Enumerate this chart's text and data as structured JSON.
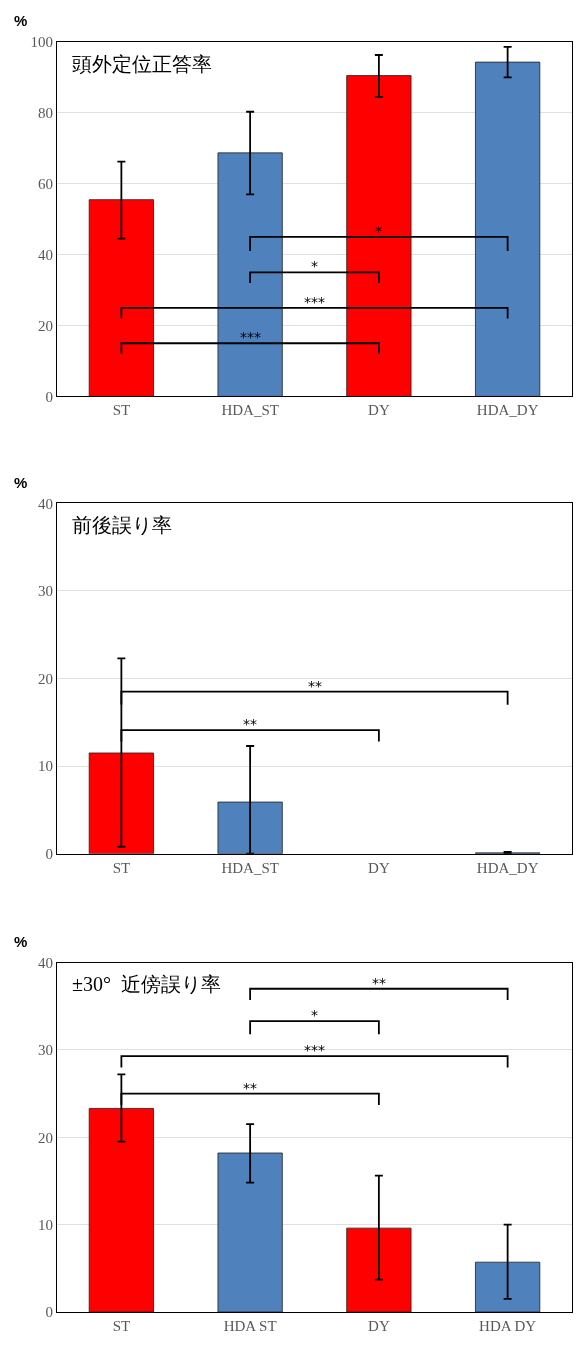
{
  "chart_data": [
    {
      "type": "bar",
      "title": "頭外定位正答率",
      "ylabel": "%",
      "categories": [
        "ST",
        "HDA_ST",
        "DY",
        "HDA_DY"
      ],
      "values": [
        55.5,
        68.7,
        90.5,
        94.3
      ],
      "colors": [
        "#ff0000",
        "#4f81bd",
        "#ff0000",
        "#4f81bd"
      ],
      "errors": [
        [
          44.5,
          66.2
        ],
        [
          57,
          80.3
        ],
        [
          84.5,
          96.3
        ],
        [
          90,
          98.6
        ]
      ],
      "ylim": [
        0,
        100
      ],
      "yticks": [
        0,
        20,
        40,
        60,
        80,
        100
      ],
      "grid": "y",
      "annotations": [
        "*",
        "*",
        "***",
        "***"
      ]
    },
    {
      "type": "bar",
      "title": "前後誤り率",
      "ylabel": "%",
      "categories": [
        "ST",
        "HDA_ST",
        "DY",
        "HDA_DY"
      ],
      "values": [
        11.5,
        5.9,
        null,
        0.1
      ],
      "colors": [
        "#ff0000",
        "#4f81bd",
        "#ff0000",
        "#4f81bd"
      ],
      "errors": [
        [
          0.8,
          22.3
        ],
        [
          0,
          12.3
        ],
        null,
        [
          0,
          0.2
        ]
      ],
      "ylim": [
        0,
        40
      ],
      "yticks": [
        0,
        10,
        20,
        30,
        40
      ],
      "grid": "y",
      "annotations": [
        "**",
        "**"
      ]
    },
    {
      "type": "bar",
      "title": "±30°  近傍誤り率",
      "ylabel": "%",
      "categories": [
        "ST",
        "HDA ST",
        "DY",
        "HDA DY"
      ],
      "values": [
        23.3,
        18.2,
        9.6,
        5.7
      ],
      "colors": [
        "#ff0000",
        "#4f81bd",
        "#ff0000",
        "#4f81bd"
      ],
      "errors": [
        [
          19.5,
          27.2
        ],
        [
          14.8,
          21.5
        ],
        [
          3.7,
          15.6
        ],
        [
          1.5,
          10
        ]
      ],
      "ylim": [
        0,
        40
      ],
      "yticks": [
        0,
        10,
        20,
        30,
        40
      ],
      "grid": "y",
      "annotations": [
        "**",
        "*",
        "***",
        "**"
      ]
    }
  ]
}
